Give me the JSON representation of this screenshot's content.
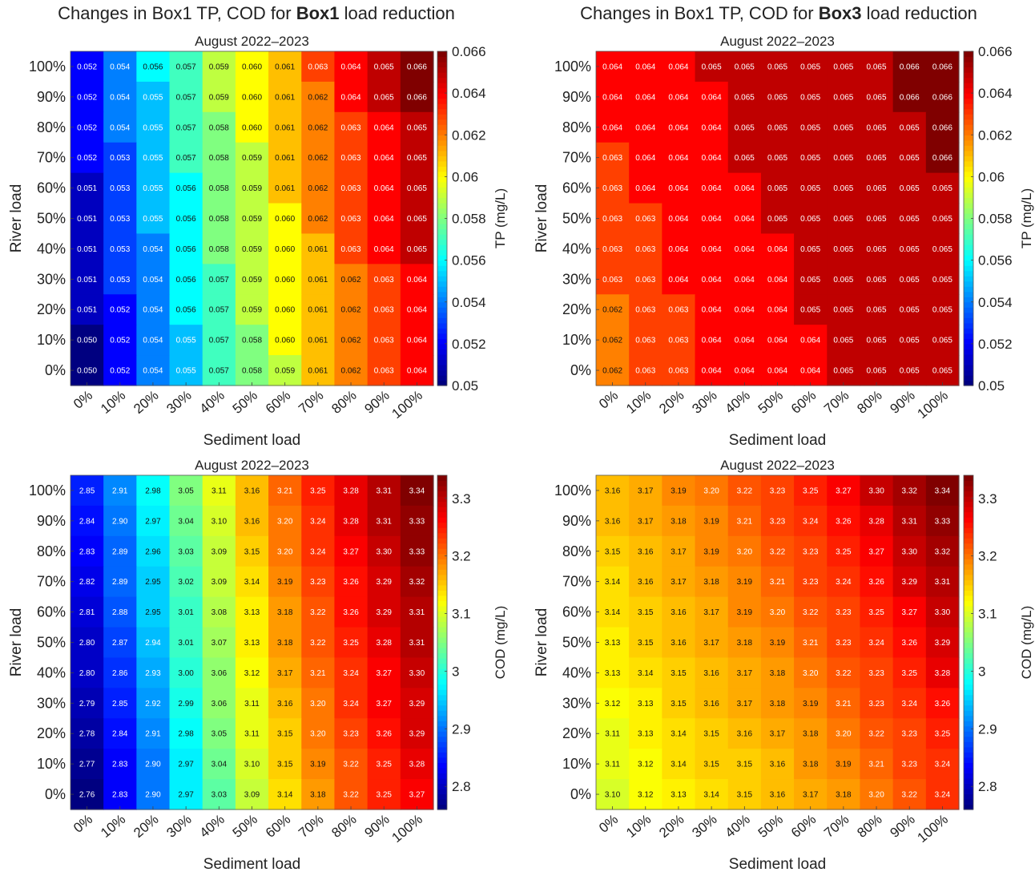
{
  "column_titles": [
    {
      "pre": "Changes in Box1 TP, COD for ",
      "bold": "Box1",
      "post": " load reduction"
    },
    {
      "pre": "Changes in Box1 TP, COD for ",
      "bold": "Box3",
      "post": " load reduction"
    }
  ],
  "chart_data": [
    {
      "type": "heatmap",
      "title": "August 2022–2023",
      "xlabel": "Sediment load",
      "ylabel": "River load",
      "colorbar_label": "TP (mg/L)",
      "colormap": "jet",
      "clim": [
        0.05,
        0.066
      ],
      "colorbar_ticks": [
        "0.05",
        "0.052",
        "0.054",
        "0.056",
        "0.058",
        "0.06",
        "0.062",
        "0.064",
        "0.066"
      ],
      "decimals": 3,
      "x": [
        "0%",
        "10%",
        "20%",
        "30%",
        "40%",
        "50%",
        "60%",
        "70%",
        "80%",
        "90%",
        "100%"
      ],
      "y": [
        "100%",
        "90%",
        "80%",
        "70%",
        "60%",
        "50%",
        "40%",
        "30%",
        "20%",
        "10%",
        "0%"
      ],
      "values": [
        [
          0.052,
          0.054,
          0.056,
          0.057,
          0.059,
          0.06,
          0.061,
          0.063,
          0.064,
          0.065,
          0.066
        ],
        [
          0.052,
          0.054,
          0.055,
          0.057,
          0.059,
          0.06,
          0.061,
          0.062,
          0.064,
          0.065,
          0.066
        ],
        [
          0.052,
          0.054,
          0.055,
          0.057,
          0.058,
          0.06,
          0.061,
          0.062,
          0.063,
          0.064,
          0.065
        ],
        [
          0.052,
          0.053,
          0.055,
          0.057,
          0.058,
          0.059,
          0.061,
          0.062,
          0.063,
          0.064,
          0.065
        ],
        [
          0.051,
          0.053,
          0.055,
          0.056,
          0.058,
          0.059,
          0.061,
          0.062,
          0.063,
          0.064,
          0.065
        ],
        [
          0.051,
          0.053,
          0.055,
          0.056,
          0.058,
          0.059,
          0.06,
          0.062,
          0.063,
          0.064,
          0.065
        ],
        [
          0.051,
          0.053,
          0.054,
          0.056,
          0.058,
          0.059,
          0.06,
          0.061,
          0.063,
          0.064,
          0.065
        ],
        [
          0.051,
          0.053,
          0.054,
          0.056,
          0.057,
          0.059,
          0.06,
          0.061,
          0.062,
          0.063,
          0.064
        ],
        [
          0.051,
          0.052,
          0.054,
          0.056,
          0.057,
          0.059,
          0.06,
          0.061,
          0.062,
          0.063,
          0.064
        ],
        [
          0.05,
          0.052,
          0.054,
          0.055,
          0.057,
          0.058,
          0.06,
          0.061,
          0.062,
          0.063,
          0.064
        ],
        [
          0.05,
          0.052,
          0.054,
          0.055,
          0.057,
          0.058,
          0.059,
          0.061,
          0.062,
          0.063,
          0.064
        ]
      ]
    },
    {
      "type": "heatmap",
      "title": "August 2022–2023",
      "xlabel": "Sediment load",
      "ylabel": "River load",
      "colorbar_label": "TP (mg/L)",
      "colormap": "jet",
      "clim": [
        0.05,
        0.066
      ],
      "colorbar_ticks": [
        "0.05",
        "0.052",
        "0.054",
        "0.056",
        "0.058",
        "0.06",
        "0.062",
        "0.064",
        "0.066"
      ],
      "decimals": 3,
      "x": [
        "0%",
        "10%",
        "20%",
        "30%",
        "40%",
        "50%",
        "60%",
        "70%",
        "80%",
        "90%",
        "100%"
      ],
      "y": [
        "100%",
        "90%",
        "80%",
        "70%",
        "60%",
        "50%",
        "40%",
        "30%",
        "20%",
        "10%",
        "0%"
      ],
      "values": [
        [
          0.064,
          0.064,
          0.064,
          0.065,
          0.065,
          0.065,
          0.065,
          0.065,
          0.065,
          0.066,
          0.066
        ],
        [
          0.064,
          0.064,
          0.064,
          0.064,
          0.065,
          0.065,
          0.065,
          0.065,
          0.065,
          0.066,
          0.066
        ],
        [
          0.064,
          0.064,
          0.064,
          0.064,
          0.065,
          0.065,
          0.065,
          0.065,
          0.065,
          0.065,
          0.066
        ],
        [
          0.063,
          0.064,
          0.064,
          0.064,
          0.065,
          0.065,
          0.065,
          0.065,
          0.065,
          0.065,
          0.066
        ],
        [
          0.063,
          0.064,
          0.064,
          0.064,
          0.064,
          0.065,
          0.065,
          0.065,
          0.065,
          0.065,
          0.065
        ],
        [
          0.063,
          0.063,
          0.064,
          0.064,
          0.064,
          0.065,
          0.065,
          0.065,
          0.065,
          0.065,
          0.065
        ],
        [
          0.063,
          0.063,
          0.064,
          0.064,
          0.064,
          0.064,
          0.065,
          0.065,
          0.065,
          0.065,
          0.065
        ],
        [
          0.063,
          0.063,
          0.064,
          0.064,
          0.064,
          0.064,
          0.065,
          0.065,
          0.065,
          0.065,
          0.065
        ],
        [
          0.062,
          0.063,
          0.063,
          0.064,
          0.064,
          0.064,
          0.065,
          0.065,
          0.065,
          0.065,
          0.065
        ],
        [
          0.062,
          0.063,
          0.063,
          0.064,
          0.064,
          0.064,
          0.064,
          0.065,
          0.065,
          0.065,
          0.065
        ],
        [
          0.062,
          0.063,
          0.063,
          0.064,
          0.064,
          0.064,
          0.064,
          0.065,
          0.065,
          0.065,
          0.065
        ]
      ]
    },
    {
      "type": "heatmap",
      "title": "August 2022–2023",
      "xlabel": "Sediment load",
      "ylabel": "River load",
      "colorbar_label": "COD (mg/L)",
      "colormap": "jet",
      "clim": [
        2.76,
        3.34
      ],
      "colorbar_ticks": [
        "2.8",
        "2.9",
        "3",
        "3.1",
        "3.2",
        "3.3"
      ],
      "decimals": 2,
      "x": [
        "0%",
        "10%",
        "20%",
        "30%",
        "40%",
        "50%",
        "60%",
        "70%",
        "80%",
        "90%",
        "100%"
      ],
      "y": [
        "100%",
        "90%",
        "80%",
        "70%",
        "60%",
        "50%",
        "40%",
        "30%",
        "20%",
        "10%",
        "0%"
      ],
      "values": [
        [
          2.85,
          2.91,
          2.98,
          3.05,
          3.11,
          3.16,
          3.21,
          3.25,
          3.28,
          3.31,
          3.34
        ],
        [
          2.84,
          2.9,
          2.97,
          3.04,
          3.1,
          3.16,
          3.2,
          3.24,
          3.28,
          3.31,
          3.33
        ],
        [
          2.83,
          2.89,
          2.96,
          3.03,
          3.09,
          3.15,
          3.2,
          3.24,
          3.27,
          3.3,
          3.33
        ],
        [
          2.82,
          2.89,
          2.95,
          3.02,
          3.09,
          3.14,
          3.19,
          3.23,
          3.26,
          3.29,
          3.32
        ],
        [
          2.81,
          2.88,
          2.95,
          3.01,
          3.08,
          3.13,
          3.18,
          3.22,
          3.26,
          3.29,
          3.31
        ],
        [
          2.8,
          2.87,
          2.94,
          3.01,
          3.07,
          3.13,
          3.18,
          3.22,
          3.25,
          3.28,
          3.31
        ],
        [
          2.8,
          2.86,
          2.93,
          3.0,
          3.06,
          3.12,
          3.17,
          3.21,
          3.24,
          3.27,
          3.3
        ],
        [
          2.79,
          2.85,
          2.92,
          2.99,
          3.06,
          3.11,
          3.16,
          3.2,
          3.24,
          3.27,
          3.29
        ],
        [
          2.78,
          2.84,
          2.91,
          2.98,
          3.05,
          3.11,
          3.15,
          3.2,
          3.23,
          3.26,
          3.29
        ],
        [
          2.77,
          2.83,
          2.9,
          2.97,
          3.04,
          3.1,
          3.15,
          3.19,
          3.22,
          3.25,
          3.28
        ],
        [
          2.76,
          2.83,
          2.9,
          2.97,
          3.03,
          3.09,
          3.14,
          3.18,
          3.22,
          3.25,
          3.27
        ]
      ]
    },
    {
      "type": "heatmap",
      "title": "August 2022–2023",
      "xlabel": "Sediment load",
      "ylabel": "River load",
      "colorbar_label": "COD (mg/L)",
      "colormap": "jet",
      "clim": [
        2.76,
        3.34
      ],
      "colorbar_ticks": [
        "2.8",
        "2.9",
        "3",
        "3.1",
        "3.2",
        "3.3"
      ],
      "decimals": 2,
      "x": [
        "0%",
        "10%",
        "20%",
        "30%",
        "40%",
        "50%",
        "60%",
        "70%",
        "80%",
        "90%",
        "100%"
      ],
      "y": [
        "100%",
        "90%",
        "80%",
        "70%",
        "60%",
        "50%",
        "40%",
        "30%",
        "20%",
        "10%",
        "0%"
      ],
      "values": [
        [
          3.16,
          3.17,
          3.19,
          3.2,
          3.22,
          3.23,
          3.25,
          3.27,
          3.3,
          3.32,
          3.34
        ],
        [
          3.16,
          3.17,
          3.18,
          3.19,
          3.21,
          3.23,
          3.24,
          3.26,
          3.28,
          3.31,
          3.33
        ],
        [
          3.15,
          3.16,
          3.17,
          3.19,
          3.2,
          3.22,
          3.23,
          3.25,
          3.27,
          3.3,
          3.32
        ],
        [
          3.14,
          3.16,
          3.17,
          3.18,
          3.19,
          3.21,
          3.23,
          3.24,
          3.26,
          3.29,
          3.31
        ],
        [
          3.14,
          3.15,
          3.16,
          3.17,
          3.19,
          3.2,
          3.22,
          3.23,
          3.25,
          3.27,
          3.3
        ],
        [
          3.13,
          3.15,
          3.16,
          3.17,
          3.18,
          3.19,
          3.21,
          3.23,
          3.24,
          3.26,
          3.29
        ],
        [
          3.13,
          3.14,
          3.15,
          3.16,
          3.17,
          3.18,
          3.2,
          3.22,
          3.23,
          3.25,
          3.28
        ],
        [
          3.12,
          3.13,
          3.15,
          3.16,
          3.17,
          3.18,
          3.19,
          3.21,
          3.23,
          3.24,
          3.26
        ],
        [
          3.11,
          3.13,
          3.14,
          3.15,
          3.16,
          3.17,
          3.18,
          3.2,
          3.22,
          3.23,
          3.25
        ],
        [
          3.11,
          3.12,
          3.14,
          3.15,
          3.15,
          3.16,
          3.18,
          3.19,
          3.21,
          3.23,
          3.24
        ],
        [
          3.1,
          3.12,
          3.13,
          3.14,
          3.15,
          3.16,
          3.17,
          3.18,
          3.2,
          3.22,
          3.24
        ]
      ]
    }
  ]
}
